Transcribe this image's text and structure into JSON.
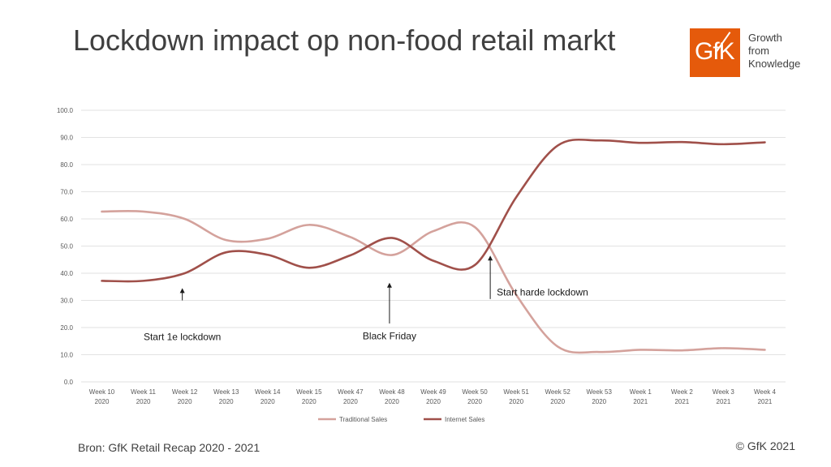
{
  "header": {
    "title": "Lockdown impact op non-food retail markt"
  },
  "logo": {
    "mark": "GfK",
    "line1": "Growth",
    "line2": "from",
    "line3": "Knowledge",
    "color": "#e55a0b"
  },
  "footer": {
    "source": "Bron: GfK Retail Recap 2020 - 2021",
    "copyright": "© GfK 2021"
  },
  "chart_data": {
    "type": "line",
    "title": "",
    "xlabel": "",
    "ylabel": "",
    "ylim": [
      0,
      100
    ],
    "yticks": [
      "0.0",
      "10.0",
      "20.0",
      "30.0",
      "40.0",
      "50.0",
      "60.0",
      "70.0",
      "80.0",
      "90.0",
      "100.0"
    ],
    "grid": true,
    "legend_position": "bottom",
    "categories": [
      [
        "Week 10",
        "2020"
      ],
      [
        "Week 11",
        "2020"
      ],
      [
        "Week 12",
        "2020"
      ],
      [
        "Week 13",
        "2020"
      ],
      [
        "Week 14",
        "2020"
      ],
      [
        "Week 15",
        "2020"
      ],
      [
        "Week 47",
        "2020"
      ],
      [
        "Week 48",
        "2020"
      ],
      [
        "Week 49",
        "2020"
      ],
      [
        "Week 50",
        "2020"
      ],
      [
        "Week 51",
        "2020"
      ],
      [
        "Week 52",
        "2020"
      ],
      [
        "Week 53",
        "2020"
      ],
      [
        "Week 1",
        "2021"
      ],
      [
        "Week 2",
        "2021"
      ],
      [
        "Week 3",
        "2021"
      ],
      [
        "Week 4",
        "2021"
      ]
    ],
    "series": [
      {
        "name": "Traditional Sales",
        "color": "#d4a29c",
        "values": [
          62.7,
          62.7,
          60.0,
          52.2,
          52.7,
          57.8,
          53.3,
          46.7,
          55.5,
          57.0,
          32.0,
          13.0,
          11.0,
          11.8,
          11.6,
          12.4,
          11.8
        ]
      },
      {
        "name": "Internet Sales",
        "color": "#a0504a",
        "values": [
          37.2,
          37.2,
          40.0,
          47.7,
          46.8,
          42.0,
          46.6,
          53.0,
          44.6,
          43.0,
          68.0,
          87.0,
          88.9,
          88.0,
          88.3,
          87.5,
          88.2
        ]
      }
    ],
    "annotations": [
      {
        "text": "Start 1e lockdown",
        "category_index": 2,
        "arrow_from": 30,
        "arrow_to": 34.5,
        "text_align": "middle",
        "text_level": 16.5
      },
      {
        "text": "Black Friday",
        "category_index": 7,
        "arrow_from": 21.5,
        "arrow_to": 36.5,
        "text_align": "middle",
        "text_level": 16.8
      },
      {
        "text": "Start harde lockdown",
        "category_index": 10,
        "arrow_from": 30.5,
        "arrow_to": 46.5,
        "text_align": "start",
        "text_level": 33
      }
    ]
  }
}
